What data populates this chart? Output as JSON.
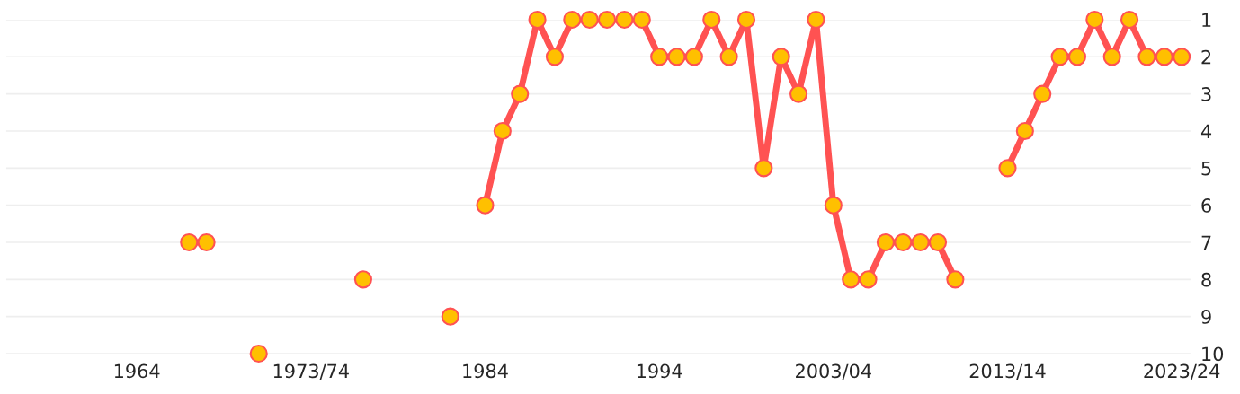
{
  "chart_data": {
    "type": "line",
    "categories": [
      null,
      null,
      null,
      null,
      null,
      null,
      null,
      "1964",
      null,
      null,
      null,
      null,
      null,
      null,
      null,
      null,
      null,
      "1973/74",
      null,
      null,
      null,
      null,
      null,
      null,
      null,
      null,
      null,
      "1984",
      null,
      null,
      null,
      null,
      null,
      null,
      null,
      null,
      null,
      "1994",
      null,
      null,
      null,
      null,
      null,
      null,
      null,
      null,
      null,
      "2003/04",
      null,
      null,
      null,
      null,
      null,
      null,
      null,
      null,
      null,
      "2013/14",
      null,
      null,
      null,
      null,
      null,
      null,
      null,
      null,
      null,
      "2023/24"
    ],
    "series": [
      {
        "color": "#ff5252",
        "values": [
          null,
          null,
          null,
          null,
          null,
          null,
          null,
          null,
          null,
          null,
          7,
          7,
          null,
          null,
          10,
          null,
          null,
          null,
          null,
          null,
          8,
          null,
          null,
          null,
          null,
          9,
          null,
          6,
          4,
          3,
          1,
          2,
          1,
          1,
          1,
          1,
          1,
          2,
          2,
          2,
          1,
          2,
          1,
          5,
          2,
          3,
          1,
          6,
          8,
          8,
          7,
          7,
          7,
          7,
          8,
          null,
          null,
          5,
          4,
          3,
          2,
          2,
          1,
          2,
          1,
          2,
          2,
          2
        ]
      }
    ],
    "ylim": [
      10,
      1
    ],
    "yticks": [
      1,
      2,
      3,
      4,
      5,
      6,
      7,
      8,
      9,
      10
    ],
    "grid": "y",
    "marker": "circle",
    "line_style": "solid"
  }
}
